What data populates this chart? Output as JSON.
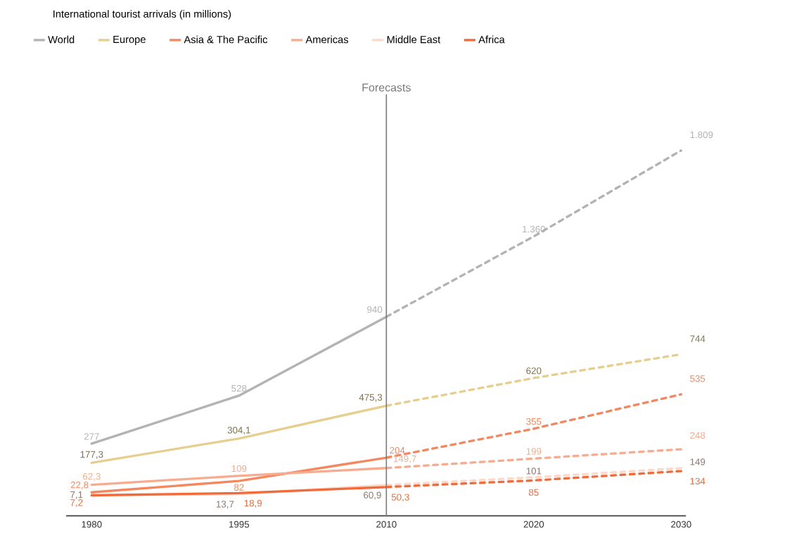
{
  "chart_data": {
    "type": "line",
    "title": "International tourist arrivals (in millions)",
    "categories": [
      "1980",
      "1995",
      "2010",
      "2020",
      "2030"
    ],
    "ylim": [
      -100,
      2100
    ],
    "legend": "top left",
    "grid": false,
    "ref_lines": [
      {
        "axis": "x",
        "value": "2010",
        "label": "Forecasts",
        "color": "#7a7a7a"
      }
    ],
    "series": [
      {
        "name": "World",
        "color": "#b3b3b3",
        "values": [
          277,
          528,
          940,
          null,
          null
        ],
        "value_labels": [
          "277",
          "528",
          "940",
          null,
          null
        ]
      },
      {
        "color": "#b3b3b3",
        "line_style": "dashed",
        "values": [
          null,
          null,
          940,
          1360,
          1809
        ],
        "value_labels": [
          null,
          null,
          null,
          "1.360",
          "1.809"
        ]
      },
      {
        "name": "Europe",
        "color": "#e6cf8e",
        "values": [
          177.3,
          304.1,
          475.3,
          null,
          null
        ],
        "value_labels": [
          "177,3",
          "304,1",
          "475,3",
          null,
          null
        ]
      },
      {
        "color": "#e6cf8e",
        "line_style": "dashed",
        "values": [
          null,
          null,
          475.3,
          620,
          744
        ],
        "value_labels": [
          null,
          null,
          null,
          "620",
          "744"
        ]
      },
      {
        "name": "Asia & The Pacific",
        "color": "#f4875e",
        "values": [
          22.8,
          82,
          204,
          null,
          null
        ],
        "value_labels": [
          "22,8",
          "82",
          "204",
          null,
          null
        ]
      },
      {
        "color": "#f4875e",
        "line_style": "dashed",
        "values": [
          null,
          null,
          204,
          355,
          535
        ],
        "value_labels": [
          null,
          null,
          null,
          "355",
          "535"
        ]
      },
      {
        "name": "Americas",
        "color": "#f7ab8f",
        "values": [
          62.3,
          109,
          149.7,
          null,
          null
        ],
        "value_labels": [
          "62,3",
          "109",
          "149,7",
          null,
          null
        ]
      },
      {
        "color": "#f7ab8f",
        "line_style": "dashed",
        "values": [
          null,
          null,
          149.7,
          199,
          248
        ],
        "value_labels": [
          null,
          null,
          null,
          "199",
          "248"
        ]
      },
      {
        "name": "Middle East",
        "color": "#fcd9c8",
        "values": [
          7.1,
          13.7,
          60.9,
          null,
          null
        ],
        "value_labels": [
          "7,1",
          "13,7",
          "60,9",
          null,
          null
        ]
      },
      {
        "color": "#fcd9c8",
        "line_style": "dashed",
        "values": [
          null,
          null,
          60.9,
          101,
          149
        ],
        "value_labels": [
          null,
          null,
          null,
          "101",
          "149"
        ]
      },
      {
        "name": "Africa",
        "color": "#f26a3a",
        "values": [
          7.2,
          18.9,
          50.3,
          null,
          null
        ],
        "value_labels": [
          "7,2",
          "18,9",
          "50,3",
          null,
          null
        ]
      },
      {
        "color": "#f26a3a",
        "line_style": "dashed",
        "values": [
          null,
          null,
          50.3,
          85,
          134
        ],
        "value_labels": [
          null,
          null,
          null,
          "85",
          "134"
        ]
      }
    ]
  }
}
